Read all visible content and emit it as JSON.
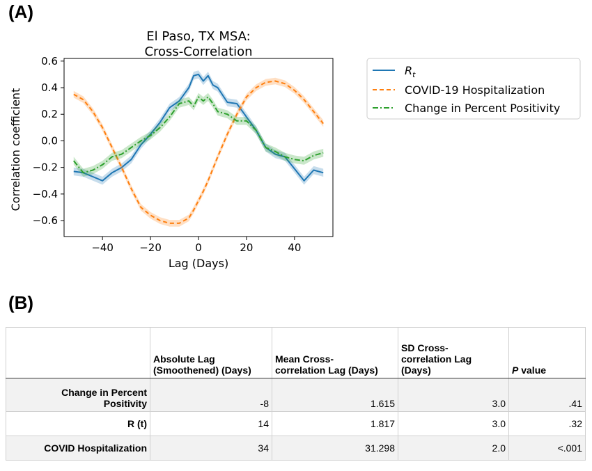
{
  "panel_a_label": "(A)",
  "panel_b_label": "(B)",
  "chart_data": {
    "type": "line",
    "title": [
      "El Paso, TX MSA:",
      "Cross-Correlation"
    ],
    "xlabel": "Lag (Days)",
    "ylabel": "Correlation coefficient",
    "xlim": [
      -56,
      56
    ],
    "ylim": [
      -0.72,
      0.62
    ],
    "xticks": [
      -40,
      -20,
      0,
      20,
      40
    ],
    "xtick_labels": [
      "−40",
      "−20",
      "0",
      "20",
      "40"
    ],
    "yticks": [
      -0.6,
      -0.4,
      -0.2,
      0.0,
      0.2,
      0.4,
      0.6
    ],
    "ytick_labels": [
      "−0.6",
      "−0.4",
      "−0.2",
      "0.0",
      "0.2",
      "0.4",
      "0.6"
    ],
    "grid": false,
    "legend_position": "outside-right",
    "x": [
      -52,
      -48,
      -44,
      -40,
      -36,
      -32,
      -28,
      -24,
      -20,
      -16,
      -12,
      -8,
      -4,
      -2,
      0,
      2,
      4,
      6,
      8,
      12,
      16,
      20,
      24,
      28,
      32,
      36,
      40,
      44,
      48,
      52
    ],
    "series": [
      {
        "name": "R_t",
        "color": "#1f77b4",
        "style": "solid",
        "values": [
          -0.23,
          -0.24,
          -0.27,
          -0.3,
          -0.24,
          -0.2,
          -0.14,
          -0.03,
          0.05,
          0.14,
          0.25,
          0.3,
          0.4,
          0.49,
          0.5,
          0.45,
          0.49,
          0.42,
          0.4,
          0.29,
          0.28,
          0.18,
          0.08,
          -0.05,
          -0.1,
          -0.12,
          -0.21,
          -0.3,
          -0.22,
          -0.24
        ],
        "band": 0.03
      },
      {
        "name": "COVID-19 Hospitalization",
        "color": "#ff7f0e",
        "style": "dashed",
        "values": [
          0.35,
          0.31,
          0.22,
          0.1,
          -0.05,
          -0.2,
          -0.36,
          -0.5,
          -0.56,
          -0.6,
          -0.62,
          -0.62,
          -0.58,
          -0.52,
          -0.45,
          -0.38,
          -0.3,
          -0.21,
          -0.12,
          0.05,
          0.2,
          0.33,
          0.4,
          0.44,
          0.45,
          0.43,
          0.38,
          0.31,
          0.22,
          0.13
        ],
        "band": 0.025
      },
      {
        "name": "Change in Percent Positivity",
        "color": "#2ca02c",
        "style": "dashdot",
        "values": [
          -0.15,
          -0.24,
          -0.22,
          -0.18,
          -0.12,
          -0.1,
          -0.05,
          0.0,
          0.04,
          0.1,
          0.18,
          0.28,
          0.3,
          0.26,
          0.33,
          0.3,
          0.33,
          0.28,
          0.22,
          0.2,
          0.15,
          0.15,
          0.08,
          -0.05,
          -0.08,
          -0.12,
          -0.14,
          -0.15,
          -0.11,
          -0.09
        ],
        "band": 0.03
      }
    ]
  },
  "legend": {
    "items": [
      {
        "label_main": "R",
        "label_sub": "t",
        "color": "#1f77b4",
        "style": "solid"
      },
      {
        "label": "COVID-19 Hospitalization",
        "color": "#ff7f0e",
        "style": "dashed"
      },
      {
        "label": "Change in Percent Positivity",
        "color": "#2ca02c",
        "style": "dashdot"
      }
    ]
  },
  "table": {
    "headers": {
      "blank": "",
      "abs_lag_line1": "Absolute Lag",
      "abs_lag_line2": "(Smoothened) (Days)",
      "mean_line1": "Mean Cross-",
      "mean_line2": "correlation Lag (Days)",
      "sd_line1": "SD Cross-",
      "sd_line2": "correlation Lag",
      "sd_line3": "(Days)",
      "p_italic": "P",
      "p_rest": " value"
    },
    "rows": [
      {
        "label_line1": "Change in Percent",
        "label_line2": "Positivity",
        "abs_lag": "-8",
        "mean": "1.615",
        "sd": "3.0",
        "p": ".41"
      },
      {
        "label": "R (t)",
        "abs_lag": "14",
        "mean": "1.817",
        "sd": "3.0",
        "p": ".32"
      },
      {
        "label": "COVID Hospitalization",
        "abs_lag": "34",
        "mean": "31.298",
        "sd": "2.0",
        "p": "<.001"
      }
    ]
  }
}
